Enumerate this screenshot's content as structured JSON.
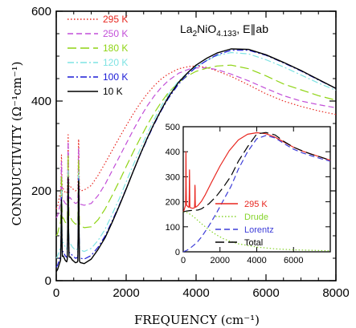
{
  "chart_data": [
    {
      "type": "line",
      "title": "La2NiO4.133, E∥ab",
      "title_parts": {
        "base": "La",
        "sub1": "2",
        "mid": "NiO",
        "sub2": "4.133",
        "tail": ", E∥ab"
      },
      "xlabel": "FREQUENCY (cm⁻¹)",
      "ylabel": "CONDUCTIVITY (Ω⁻¹cm⁻¹)",
      "xlim": [
        0,
        8000
      ],
      "ylim": [
        0,
        600
      ],
      "xticks": [
        0,
        2000,
        4000,
        6000,
        8000
      ],
      "yticks": [
        0,
        200,
        400,
        600
      ],
      "legend_position": "top-left",
      "grid": false,
      "series": [
        {
          "name": "295 K",
          "color": "#e8261f",
          "dash": "dot",
          "x": [
            0,
            40,
            100,
            150,
            200,
            260,
            300,
            340,
            400,
            460,
            550,
            640,
            700,
            800,
            1000,
            1200,
            1400,
            1600,
            1800,
            2000,
            2200,
            2400,
            2600,
            2800,
            3000,
            3200,
            3500,
            3800,
            4000,
            4300,
            4600,
            5000,
            5500,
            6000,
            6500,
            7000,
            7500,
            8000
          ],
          "y": [
            160,
            165,
            190,
            200,
            205,
            196,
            195,
            205,
            210,
            205,
            200,
            205,
            200,
            202,
            212,
            235,
            262,
            290,
            318,
            345,
            371,
            395,
            416,
            434,
            449,
            460,
            472,
            477,
            478,
            475,
            467,
            455,
            436,
            416,
            400,
            388,
            378,
            370
          ]
        },
        {
          "name": "250 K",
          "color": "#c24fd8",
          "dash": "dash",
          "x": [
            0,
            40,
            100,
            150,
            200,
            260,
            300,
            340,
            400,
            460,
            550,
            640,
            700,
            800,
            1000,
            1200,
            1400,
            1600,
            1800,
            2000,
            2200,
            2400,
            2600,
            2800,
            3000,
            3200,
            3500,
            3800,
            4000,
            4300,
            4600,
            5000,
            5500,
            6000,
            6500,
            7000,
            7500,
            8000
          ],
          "y": [
            140,
            145,
            165,
            175,
            180,
            172,
            170,
            180,
            185,
            178,
            172,
            175,
            170,
            168,
            172,
            190,
            215,
            245,
            275,
            305,
            335,
            363,
            389,
            411,
            430,
            445,
            462,
            471,
            474,
            474,
            470,
            460,
            445,
            428,
            412,
            400,
            392,
            385
          ]
        },
        {
          "name": "180 K",
          "color": "#8fd414",
          "dash": "longdash",
          "x": [
            0,
            40,
            100,
            150,
            200,
            260,
            300,
            340,
            400,
            460,
            550,
            640,
            700,
            800,
            1000,
            1200,
            1400,
            1600,
            1800,
            2000,
            2200,
            2400,
            2600,
            2800,
            3000,
            3200,
            3500,
            3800,
            4000,
            4300,
            4600,
            5000,
            5500,
            6000,
            6500,
            7000,
            7500,
            8000
          ],
          "y": [
            100,
            105,
            125,
            135,
            140,
            130,
            128,
            138,
            142,
            133,
            126,
            128,
            122,
            118,
            120,
            136,
            160,
            190,
            221,
            254,
            286,
            317,
            346,
            373,
            397,
            418,
            442,
            458,
            466,
            473,
            478,
            480,
            472,
            456,
            438,
            425,
            412,
            402
          ]
        },
        {
          "name": "120 K",
          "color": "#7fe3e3",
          "dash": "dashdot",
          "x": [
            0,
            40,
            100,
            150,
            200,
            260,
            300,
            340,
            400,
            460,
            550,
            640,
            700,
            800,
            1000,
            1200,
            1400,
            1600,
            1800,
            2000,
            2200,
            2400,
            2600,
            2800,
            3000,
            3200,
            3500,
            3800,
            4000,
            4300,
            4600,
            5000,
            5500,
            6000,
            6500,
            7000,
            7500,
            8000
          ],
          "y": [
            50,
            55,
            70,
            80,
            85,
            75,
            70,
            80,
            83,
            75,
            68,
            72,
            68,
            65,
            72,
            90,
            115,
            148,
            182,
            220,
            257,
            293,
            327,
            359,
            388,
            414,
            445,
            466,
            477,
            490,
            501,
            508,
            505,
            492,
            476,
            458,
            440,
            424
          ]
        },
        {
          "name": "100 K",
          "color": "#1a1ad6",
          "dash": "dashdot",
          "x": [
            0,
            40,
            100,
            150,
            200,
            260,
            300,
            340,
            400,
            460,
            550,
            640,
            700,
            800,
            1000,
            1200,
            1400,
            1600,
            1800,
            2000,
            2200,
            2400,
            2600,
            2800,
            3000,
            3200,
            3500,
            3800,
            4000,
            4300,
            4600,
            5000,
            5500,
            6000,
            6500,
            7000,
            7500,
            8000
          ],
          "y": [
            30,
            35,
            50,
            60,
            65,
            55,
            52,
            60,
            63,
            56,
            50,
            52,
            50,
            48,
            56,
            75,
            100,
            133,
            168,
            205,
            243,
            280,
            315,
            348,
            378,
            405,
            438,
            462,
            475,
            490,
            503,
            513,
            513,
            502,
            485,
            467,
            447,
            428
          ]
        },
        {
          "name": "10 K",
          "color": "#000000",
          "dash": "solid",
          "x": [
            0,
            40,
            100,
            150,
            200,
            260,
            300,
            340,
            400,
            460,
            550,
            640,
            700,
            800,
            1000,
            1200,
            1400,
            1600,
            1800,
            2000,
            2200,
            2400,
            2600,
            2800,
            3000,
            3200,
            3500,
            3800,
            4000,
            4300,
            4600,
            5000,
            5500,
            6000,
            6500,
            7000,
            7500,
            8000
          ],
          "y": [
            20,
            25,
            40,
            50,
            55,
            45,
            42,
            50,
            53,
            46,
            40,
            42,
            40,
            38,
            48,
            70,
            96,
            130,
            166,
            204,
            243,
            281,
            317,
            350,
            380,
            408,
            442,
            466,
            480,
            495,
            507,
            516,
            515,
            503,
            486,
            468,
            448,
            428
          ]
        }
      ],
      "phonon_peaks": {
        "x": [
          150,
          340,
          640
        ],
        "heights": {
          "295 K": [
            80,
            120,
            110
          ],
          "250 K": [
            90,
            130,
            120
          ],
          "180 K": [
            100,
            140,
            140
          ],
          "120 K": [
            120,
            165,
            170
          ],
          "100 K": [
            125,
            170,
            175
          ],
          "10 K": [
            130,
            180,
            180
          ]
        }
      }
    },
    {
      "type": "line",
      "title": "",
      "xlabel": "",
      "ylabel": "",
      "xlim": [
        0,
        8000
      ],
      "ylim": [
        0,
        500
      ],
      "xticks": [
        0,
        2000,
        4000,
        6000
      ],
      "yticks": [
        0,
        100,
        200,
        300,
        400,
        500
      ],
      "legend_position": "bottom-right",
      "series": [
        {
          "name": "295 K",
          "color": "#e8261f",
          "dash": "solid",
          "x": [
            0,
            40,
            100,
            150,
            200,
            260,
            300,
            400,
            500,
            640,
            800,
            1000,
            1200,
            1500,
            2000,
            2500,
            3000,
            3500,
            4000,
            4500,
            5000,
            5500,
            6000,
            6500,
            7000,
            7500,
            8000
          ],
          "y": [
            160,
            165,
            180,
            185,
            185,
            180,
            178,
            176,
            174,
            176,
            185,
            203,
            228,
            272,
            343,
            404,
            447,
            470,
            476,
            472,
            458,
            438,
            418,
            402,
            390,
            378,
            366
          ]
        },
        {
          "name": "Drude",
          "color": "#86d42c",
          "dash": "dot",
          "x": [
            0,
            200,
            400,
            600,
            800,
            1000,
            1400,
            1800,
            2200,
            2600,
            3000,
            4000,
            5000,
            6000,
            7000,
            8000
          ],
          "y": [
            160,
            157,
            149,
            138,
            125,
            112,
            88,
            68,
            52,
            41,
            32,
            19,
            12,
            8,
            6,
            4
          ]
        },
        {
          "name": "Lorentz",
          "color": "#3d3dd8",
          "dash": "dash",
          "x": [
            0,
            200,
            400,
            600,
            800,
            1000,
            1400,
            1800,
            2200,
            2600,
            3000,
            3500,
            4000,
            4500,
            5000,
            5500,
            6000,
            6500,
            7000,
            7500,
            8000
          ],
          "y": [
            0,
            6,
            16,
            28,
            42,
            60,
            104,
            154,
            208,
            262,
            330,
            400,
            452,
            465,
            455,
            432,
            410,
            395,
            383,
            372,
            362
          ]
        },
        {
          "name": "Total",
          "color": "#000000",
          "dash": "longdash",
          "x": [
            0,
            200,
            400,
            600,
            800,
            1000,
            1400,
            1800,
            2200,
            2600,
            3000,
            3500,
            4000,
            4500,
            5000,
            5500,
            6000,
            6500,
            7000,
            7500,
            8000
          ],
          "y": [
            160,
            163,
            165,
            166,
            167,
            172,
            192,
            222,
            260,
            303,
            362,
            420,
            471,
            477,
            467,
            440,
            418,
            403,
            389,
            378,
            366
          ]
        }
      ],
      "phonon_peaks": {
        "x": [
          150,
          340,
          640
        ],
        "heights": {
          "295 K": [
            215,
            150,
            90
          ]
        }
      }
    }
  ]
}
